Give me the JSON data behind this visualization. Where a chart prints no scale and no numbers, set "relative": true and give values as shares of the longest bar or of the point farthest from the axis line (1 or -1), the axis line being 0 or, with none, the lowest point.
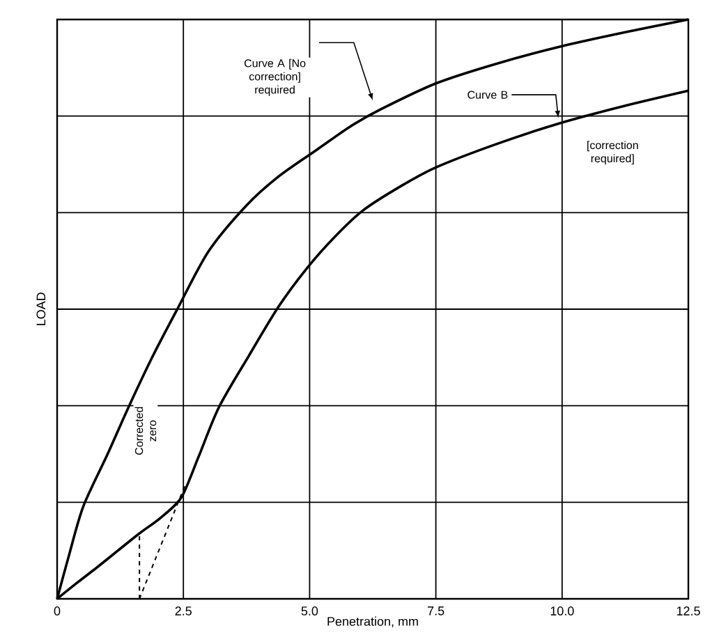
{
  "chart_data": {
    "type": "line",
    "xlabel": "Penetration, mm",
    "ylabel": "LOAD",
    "relative": true,
    "xlim": [
      0,
      12.5
    ],
    "xticks": [
      0,
      2.5,
      {
        "value": 5,
        "label": "5.0"
      },
      7.5,
      {
        "value": 10,
        "label": "10.0"
      },
      12.5
    ],
    "tick_labels": "x",
    "grid": true,
    "series": [
      {
        "color": "#000000",
        "x": [
          0,
          0.25,
          0.52,
          1.0,
          1.41,
          1.9,
          2.38,
          3.0,
          3.76,
          4.4,
          5.14,
          5.8,
          6.41,
          7.51,
          8.75,
          10.0,
          11.25,
          12.5
        ],
        "values": [
          0,
          0.08,
          0.16,
          0.25,
          0.33,
          0.42,
          0.5,
          0.6,
          0.68,
          0.73,
          0.775,
          0.815,
          0.845,
          0.89,
          0.925,
          0.954,
          0.978,
          1.0
        ]
      },
      {
        "color": "#000000",
        "x": [
          0,
          0.4,
          0.8,
          1.2,
          1.63,
          2.05,
          2.46,
          2.8,
          3.2,
          3.8,
          4.39,
          4.94,
          5.5,
          6.05,
          6.8,
          7.51,
          8.7,
          9.92,
          11.2,
          12.5
        ],
        "values": [
          0,
          0.028,
          0.055,
          0.083,
          0.113,
          0.14,
          0.175,
          0.245,
          0.33,
          0.42,
          0.505,
          0.57,
          0.625,
          0.67,
          0.712,
          0.745,
          0.785,
          0.82,
          0.85,
          0.877
        ]
      },
      {
        "color": "#000000",
        "line_style": "dashed",
        "x": [
          1.63,
          1.63
        ],
        "values": [
          0,
          0.113
        ]
      },
      {
        "color": "#000000",
        "line_style": "dashed",
        "x": [
          1.63,
          2.55
        ],
        "values": [
          0,
          0.2
        ]
      }
    ],
    "annotations": [
      "Curve A [No correction] required",
      "Curve B",
      "[correction required]",
      "Corrected zero"
    ]
  }
}
